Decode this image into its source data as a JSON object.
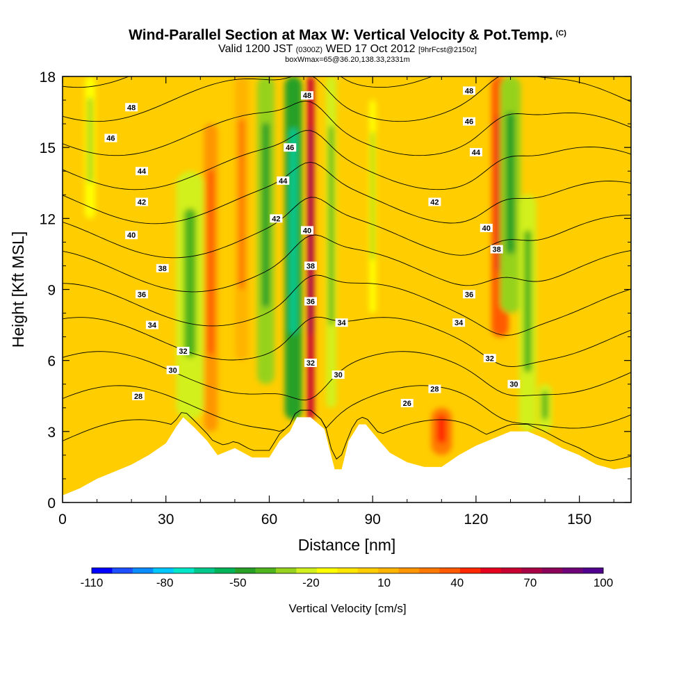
{
  "title": {
    "main": "Wind-Parallel Section at Max W: Vertical Velocity & Pot.Temp.",
    "corner": "(C)",
    "valid_prefix": "Valid 1200 JST",
    "valid_utc": "(0300Z)",
    "valid_date": "WED 17 Oct 2012",
    "forecast": "[9hrFcst@2150z]",
    "box": "boxWmax=65@36.20,138.33,2331m"
  },
  "chart_data": {
    "type": "heatmap",
    "xlabel": "Distance [nm]",
    "ylabel": "Height [Kft MSL]",
    "xlim": [
      0,
      165
    ],
    "ylim": [
      0,
      18
    ],
    "x_ticks": [
      "0",
      "30",
      "60",
      "90",
      "120",
      "150"
    ],
    "y_ticks": [
      "0",
      "3",
      "6",
      "9",
      "12",
      "15",
      "18"
    ],
    "colorbar": {
      "label": "Vertical Velocity [cm/s]",
      "tick_labels": [
        "-110",
        "-80",
        "-50",
        "-20",
        "10",
        "40",
        "70",
        "100"
      ],
      "colors": [
        "#0000ff",
        "#1e50ff",
        "#0a8cff",
        "#00c8ff",
        "#00e6c8",
        "#00c88c",
        "#00b45a",
        "#28a028",
        "#50b41e",
        "#96d21e",
        "#d2f01e",
        "#ffff00",
        "#ffe600",
        "#ffcd00",
        "#ffb400",
        "#ff9600",
        "#ff7800",
        "#ff5a00",
        "#ff2800",
        "#e6001e",
        "#c80032",
        "#aa0046",
        "#8c005a",
        "#6e0078",
        "#50008c"
      ]
    },
    "terrain_kft": [
      [
        0,
        0.3
      ],
      [
        5,
        0.6
      ],
      [
        10,
        1.0
      ],
      [
        15,
        1.3
      ],
      [
        20,
        1.6
      ],
      [
        25,
        2.0
      ],
      [
        30,
        2.5
      ],
      [
        33,
        3.2
      ],
      [
        35,
        3.6
      ],
      [
        38,
        3.2
      ],
      [
        42,
        2.6
      ],
      [
        45,
        2.0
      ],
      [
        50,
        2.3
      ],
      [
        55,
        1.9
      ],
      [
        60,
        1.9
      ],
      [
        63,
        2.6
      ],
      [
        66,
        3.0
      ],
      [
        68,
        3.6
      ],
      [
        72,
        3.6
      ],
      [
        76,
        3.1
      ],
      [
        79,
        1.4
      ],
      [
        81,
        1.4
      ],
      [
        83,
        2.6
      ],
      [
        86,
        3.3
      ],
      [
        88,
        3.3
      ],
      [
        92,
        2.6
      ],
      [
        95,
        2.1
      ],
      [
        100,
        1.7
      ],
      [
        105,
        1.5
      ],
      [
        110,
        1.5
      ],
      [
        115,
        2.0
      ],
      [
        120,
        2.4
      ],
      [
        125,
        2.7
      ],
      [
        130,
        3.0
      ],
      [
        135,
        3.0
      ],
      [
        140,
        2.7
      ],
      [
        145,
        2.3
      ],
      [
        150,
        2.0
      ],
      [
        155,
        1.6
      ],
      [
        160,
        1.4
      ],
      [
        165,
        1.5
      ]
    ],
    "w_bands": [
      {
        "x_center": 8,
        "width": 3,
        "bottom": 12,
        "top": 18,
        "w": -15
      },
      {
        "x_center": 37,
        "width": 8,
        "bottom": 3.5,
        "top": 14,
        "w": -25
      },
      {
        "x_center": 43,
        "width": 4,
        "bottom": 3,
        "top": 16,
        "w": 20
      },
      {
        "x_center": 52,
        "width": 4,
        "bottom": 6,
        "top": 18,
        "w": 15
      },
      {
        "x_center": 59,
        "width": 5,
        "bottom": 5,
        "top": 18,
        "w": -30
      },
      {
        "x_center": 67,
        "width": 5,
        "bottom": 3.5,
        "top": 18,
        "w": -45
      },
      {
        "x_center": 72,
        "width": 2,
        "bottom": 3.5,
        "top": 18,
        "w": 65
      },
      {
        "x_center": 78,
        "width": 3,
        "bottom": 4,
        "top": 18,
        "w": -20
      },
      {
        "x_center": 90,
        "width": 2,
        "bottom": 8,
        "top": 17,
        "w": -15
      },
      {
        "x_center": 110,
        "width": 6,
        "bottom": 2,
        "top": 4,
        "w": 30
      },
      {
        "x_center": 127,
        "width": 5,
        "bottom": 7,
        "top": 18,
        "w": 35
      },
      {
        "x_center": 130,
        "width": 6,
        "bottom": 8,
        "top": 18,
        "w": -30
      },
      {
        "x_center": 135,
        "width": 5,
        "bottom": 3,
        "top": 13,
        "w": -25
      },
      {
        "x_center": 140,
        "width": 4,
        "bottom": 3,
        "top": 5,
        "w": -20
      }
    ],
    "theta_contours": {
      "levels": [
        26,
        28,
        30,
        32,
        34,
        36,
        38,
        40,
        42,
        44,
        46,
        48
      ],
      "labels": [
        {
          "text": "28",
          "x": 22,
          "y": 4.5
        },
        {
          "text": "30",
          "x": 32,
          "y": 5.6
        },
        {
          "text": "32",
          "x": 35,
          "y": 6.4
        },
        {
          "text": "34",
          "x": 26,
          "y": 7.5
        },
        {
          "text": "36",
          "x": 23,
          "y": 8.8
        },
        {
          "text": "38",
          "x": 29,
          "y": 9.9
        },
        {
          "text": "40",
          "x": 20,
          "y": 11.3
        },
        {
          "text": "42",
          "x": 23,
          "y": 12.7
        },
        {
          "text": "44",
          "x": 23,
          "y": 14.0
        },
        {
          "text": "46",
          "x": 14,
          "y": 15.4
        },
        {
          "text": "48",
          "x": 20,
          "y": 16.7
        },
        {
          "text": "48",
          "x": 71,
          "y": 17.2
        },
        {
          "text": "46",
          "x": 66,
          "y": 15.0
        },
        {
          "text": "44",
          "x": 64,
          "y": 13.6
        },
        {
          "text": "42",
          "x": 62,
          "y": 12.0
        },
        {
          "text": "40",
          "x": 71,
          "y": 11.5
        },
        {
          "text": "38",
          "x": 72,
          "y": 10.0
        },
        {
          "text": "36",
          "x": 72,
          "y": 8.5
        },
        {
          "text": "34",
          "x": 81,
          "y": 7.6
        },
        {
          "text": "32",
          "x": 72,
          "y": 5.9
        },
        {
          "text": "30",
          "x": 80,
          "y": 5.4
        },
        {
          "text": "28",
          "x": 108,
          "y": 4.8
        },
        {
          "text": "26",
          "x": 100,
          "y": 4.2
        },
        {
          "text": "42",
          "x": 108,
          "y": 12.7
        },
        {
          "text": "44",
          "x": 120,
          "y": 14.8
        },
        {
          "text": "46",
          "x": 118,
          "y": 16.1
        },
        {
          "text": "48",
          "x": 118,
          "y": 17.4
        },
        {
          "text": "40",
          "x": 123,
          "y": 11.6
        },
        {
          "text": "38",
          "x": 126,
          "y": 10.7
        },
        {
          "text": "36",
          "x": 118,
          "y": 8.8
        },
        {
          "text": "34",
          "x": 115,
          "y": 7.6
        },
        {
          "text": "32",
          "x": 124,
          "y": 6.1
        },
        {
          "text": "30",
          "x": 131,
          "y": 5.0
        }
      ]
    }
  }
}
